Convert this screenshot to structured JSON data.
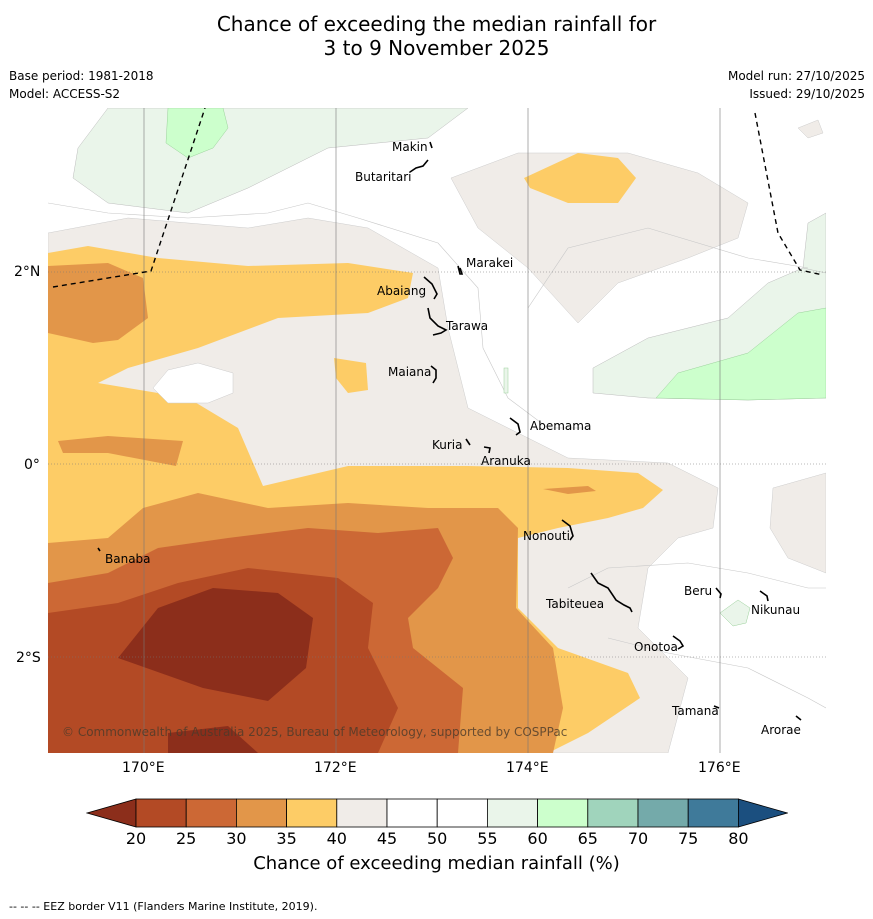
{
  "title": {
    "line1": "Chance of exceeding the median rainfall for",
    "line2": "3 to 9 November 2025"
  },
  "meta": {
    "base_period": "Base period: 1981-2018",
    "model": "Model: ACCESS-S2",
    "model_run": "Model run: 27/10/2025",
    "issued": "Issued: 29/10/2025"
  },
  "axes": {
    "lat_labels": [
      "2°N",
      "0°",
      "2°S"
    ],
    "lon_labels": [
      "170°E",
      "172°E",
      "174°E",
      "176°E"
    ]
  },
  "places": [
    {
      "name": "Makin"
    },
    {
      "name": "Butaritari"
    },
    {
      "name": "Marakei"
    },
    {
      "name": "Abaiang"
    },
    {
      "name": "Tarawa"
    },
    {
      "name": "Maiana"
    },
    {
      "name": "Abemama"
    },
    {
      "name": "Kuria"
    },
    {
      "name": "Aranuka"
    },
    {
      "name": "Nonouti"
    },
    {
      "name": "Banaba"
    },
    {
      "name": "Tabiteuea"
    },
    {
      "name": "Beru"
    },
    {
      "name": "Nikunau"
    },
    {
      "name": "Onotoa"
    },
    {
      "name": "Tamana"
    },
    {
      "name": "Arorae"
    }
  ],
  "copyright": "© Commonwealth of Australia 2025, Bureau of Meteorology, supported by COSPPac",
  "colorbar": {
    "ticks": [
      "20",
      "25",
      "30",
      "35",
      "40",
      "45",
      "50",
      "55",
      "60",
      "65",
      "70",
      "75",
      "80"
    ],
    "colors": [
      "#8c2e1b",
      "#b34a25",
      "#cc6835",
      "#e29649",
      "#fdcc66",
      "#f0ece8",
      "#ffffff",
      "#ffffff",
      "#eaf5ea",
      "#ccffcc",
      "#a0d4bc",
      "#74aaaa",
      "#3f7a9a",
      "#1b4f7f"
    ],
    "label": "Chance of exceeding median rainfall (%)"
  },
  "footer": "--  --  -- EEZ border V11 (Flanders Marine Institute, 2019)."
}
